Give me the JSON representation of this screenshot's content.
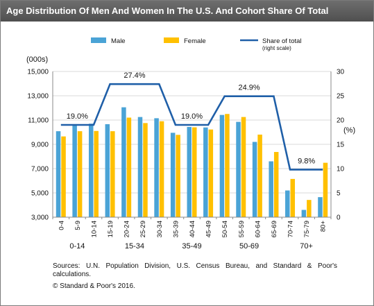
{
  "title": "Age Distribution Of Men And Women In The U.S. And Cohort Share Of Total",
  "chart_data": {
    "type": "bar",
    "left_axis_unit": "(000s)",
    "right_axis_unit": "(%)",
    "ylim": [
      3000,
      15000
    ],
    "y_ticks": [
      "3,000",
      "5,000",
      "7,000",
      "9,000",
      "11,000",
      "13,000",
      "15,000"
    ],
    "y_tick_values": [
      3000,
      5000,
      7000,
      9000,
      11000,
      13000,
      15000
    ],
    "y2lim": [
      0,
      30
    ],
    "y2_ticks": [
      "0",
      "5",
      "10",
      "15",
      "20",
      "25",
      "30"
    ],
    "y2_tick_values": [
      0,
      5,
      10,
      15,
      20,
      25,
      30
    ],
    "categories": [
      "0-4",
      "5-9",
      "10-14",
      "15-19",
      "20-24",
      "25-29",
      "30-34",
      "35-39",
      "40-44",
      "45-49",
      "50-54",
      "55-59",
      "60-64",
      "65-69",
      "70-74",
      "75-79",
      "80+"
    ],
    "series": [
      {
        "name": "Male",
        "type": "bar",
        "color": "#4aa3d6",
        "values": [
          10080,
          10660,
          10700,
          10660,
          12050,
          11250,
          11150,
          9950,
          10430,
          10390,
          11420,
          10850,
          9200,
          7600,
          5200,
          3600,
          4650
        ]
      },
      {
        "name": "Female",
        "type": "bar",
        "color": "#ffc000",
        "values": [
          9650,
          10080,
          10100,
          10080,
          11200,
          10750,
          10900,
          9780,
          10400,
          10220,
          11500,
          11250,
          9800,
          8370,
          6150,
          4420,
          7480
        ]
      },
      {
        "name": "Share of total",
        "legend_sub": "(right scale)",
        "type": "line",
        "axis": "right",
        "color": "#1f5fa8",
        "values": [
          19.0,
          19.0,
          19.0,
          27.4,
          27.4,
          27.4,
          27.4,
          19.0,
          19.0,
          19.0,
          24.9,
          24.9,
          24.9,
          24.9,
          9.8,
          9.8,
          9.8
        ]
      }
    ],
    "groups": [
      {
        "label": "0-14",
        "start": 0,
        "end": 2,
        "share_label": "19.0%"
      },
      {
        "label": "15-34",
        "start": 3,
        "end": 6,
        "share_label": "27.4%"
      },
      {
        "label": "35-49",
        "start": 7,
        "end": 9,
        "share_label": "19.0%"
      },
      {
        "label": "50-69",
        "start": 10,
        "end": 13,
        "share_label": "24.9%"
      },
      {
        "label": "70+",
        "start": 14,
        "end": 16,
        "share_label": "9.8%"
      }
    ],
    "grid": true,
    "legend_position": "top"
  },
  "sources": "Sources: U.N. Population Division, U.S. Census Bureau, and Standard & Poor's calculations.",
  "copyright": "© Standard & Poor's 2016."
}
